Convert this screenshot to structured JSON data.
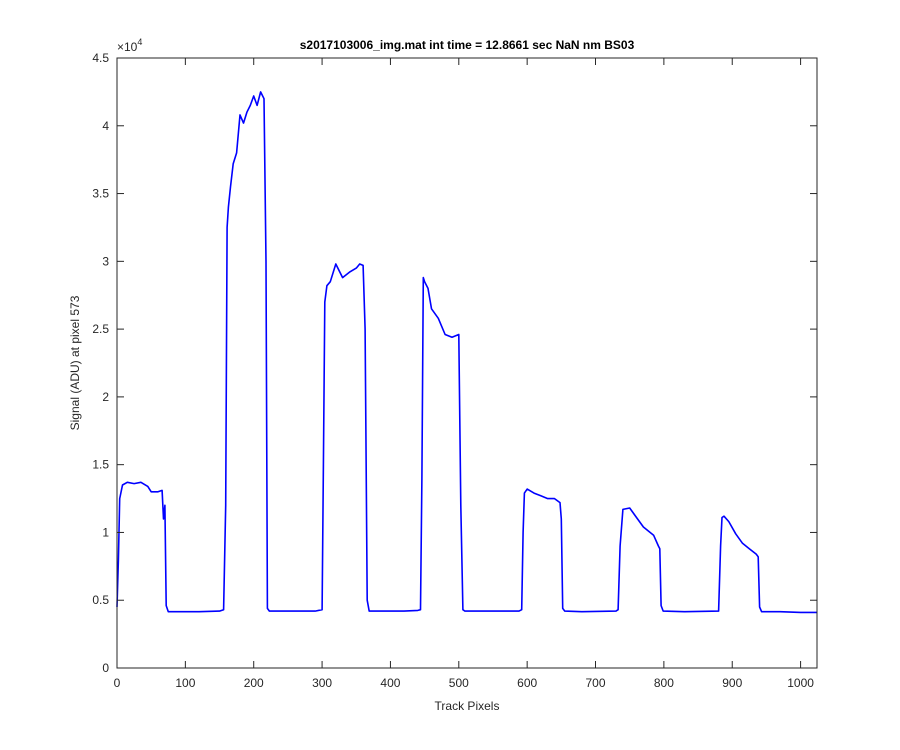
{
  "chart_data": {
    "type": "line",
    "title": "s2017103006_img.mat int time = 12.8661 sec  NaN nm BS03",
    "xlabel": "Track Pixels",
    "ylabel": "Signal (ADU) at pixel 573",
    "xlim": [
      0,
      1024
    ],
    "ylim": [
      0,
      45000
    ],
    "x_ticks": [
      0,
      100,
      200,
      300,
      400,
      500,
      600,
      700,
      800,
      900,
      1000
    ],
    "x_tick_labels": [
      "0",
      "100",
      "200",
      "300",
      "400",
      "500",
      "600",
      "700",
      "800",
      "900",
      "1000"
    ],
    "y_ticks": [
      0,
      5000,
      10000,
      15000,
      20000,
      25000,
      30000,
      35000,
      40000,
      45000
    ],
    "y_tick_labels": [
      "0",
      "0.5",
      "1",
      "1.5",
      "2",
      "2.5",
      "3",
      "3.5",
      "4",
      "4.5"
    ],
    "y_multiplier": {
      "base": "×10",
      "exponent": "4"
    },
    "grid": false,
    "series": [
      {
        "color": "#0000ff",
        "x": [
          0,
          2,
          4,
          8,
          15,
          25,
          35,
          45,
          50,
          60,
          66,
          68,
          70,
          72,
          75,
          90,
          120,
          150,
          156,
          159,
          161,
          163,
          166,
          170,
          175,
          180,
          185,
          190,
          195,
          200,
          205,
          210,
          215,
          218,
          220,
          223,
          230,
          260,
          290,
          300,
          302,
          304,
          307,
          312,
          320,
          330,
          340,
          350,
          355,
          360,
          363,
          366,
          369,
          380,
          420,
          440,
          444,
          446,
          448,
          450,
          455,
          460,
          470,
          480,
          490,
          500,
          503,
          506,
          509,
          530,
          560,
          588,
          592,
          594,
          596,
          600,
          610,
          620,
          630,
          640,
          648,
          650,
          652,
          655,
          680,
          730,
          733,
          736,
          740,
          750,
          760,
          770,
          785,
          792,
          794,
          796,
          799,
          830,
          880,
          883,
          885,
          888,
          895,
          905,
          915,
          925,
          935,
          938,
          940,
          943,
          970,
          1000,
          1024
        ],
        "y": [
          4500,
          8000,
          12500,
          13500,
          13700,
          13600,
          13700,
          13400,
          13000,
          13000,
          13100,
          11000,
          12000,
          4600,
          4150,
          4150,
          4150,
          4200,
          4300,
          12000,
          32500,
          34000,
          35500,
          37200,
          38000,
          40800,
          40200,
          41000,
          41500,
          42200,
          41500,
          42500,
          42000,
          30000,
          4400,
          4200,
          4200,
          4200,
          4200,
          4300,
          15000,
          27000,
          28200,
          28500,
          29800,
          28800,
          29200,
          29500,
          29800,
          29700,
          25000,
          5000,
          4200,
          4200,
          4200,
          4250,
          4300,
          14000,
          28800,
          28500,
          28000,
          26500,
          25800,
          24600,
          24400,
          24600,
          12000,
          4300,
          4200,
          4200,
          4200,
          4200,
          4300,
          10000,
          12900,
          13200,
          12900,
          12700,
          12500,
          12500,
          12200,
          11000,
          4400,
          4200,
          4150,
          4200,
          4300,
          9000,
          11700,
          11800,
          11100,
          10400,
          9800,
          9000,
          8800,
          4600,
          4200,
          4150,
          4200,
          9000,
          11100,
          11200,
          10800,
          9900,
          9200,
          8800,
          8400,
          8200,
          4500,
          4150,
          4150,
          4100,
          4100
        ]
      }
    ]
  }
}
